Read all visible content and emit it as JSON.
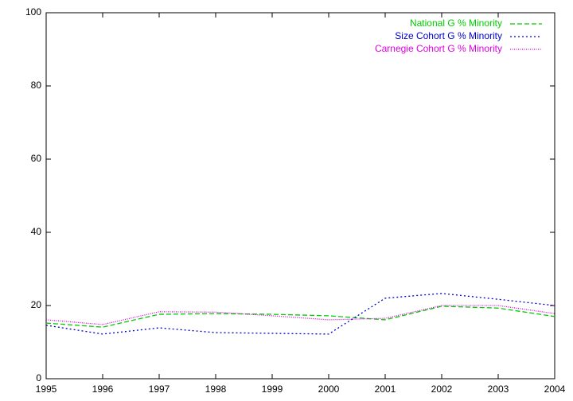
{
  "chart_data": {
    "type": "line",
    "x": [
      1995,
      1996,
      1997,
      1998,
      1999,
      2000,
      2001,
      2002,
      2003,
      2004
    ],
    "series": [
      {
        "name": "National G % Minority",
        "color": "#00cc00",
        "values": [
          15.2,
          14.1,
          17.6,
          17.8,
          17.6,
          17.2,
          16.1,
          19.8,
          19.3,
          17.0
        ]
      },
      {
        "name": "Size Cohort G % Minority",
        "color": "#0000cc",
        "values": [
          14.6,
          12.2,
          13.9,
          12.6,
          12.4,
          12.2,
          22.0,
          23.3,
          21.7,
          20.0
        ]
      },
      {
        "name": "Carnegie Cohort G % Minority",
        "color": "#dd00dd",
        "values": [
          16.1,
          14.8,
          18.3,
          18.2,
          17.2,
          16.1,
          16.5,
          20.0,
          20.0,
          17.8
        ]
      }
    ],
    "xlim": [
      1995,
      2004
    ],
    "xticks": [
      1995,
      1996,
      1997,
      1998,
      1999,
      2000,
      2001,
      2002,
      2003,
      2004
    ],
    "ylim": [
      0,
      100
    ],
    "yticks": [
      0,
      20,
      40,
      60,
      80,
      100
    ],
    "legend": "top-right"
  }
}
